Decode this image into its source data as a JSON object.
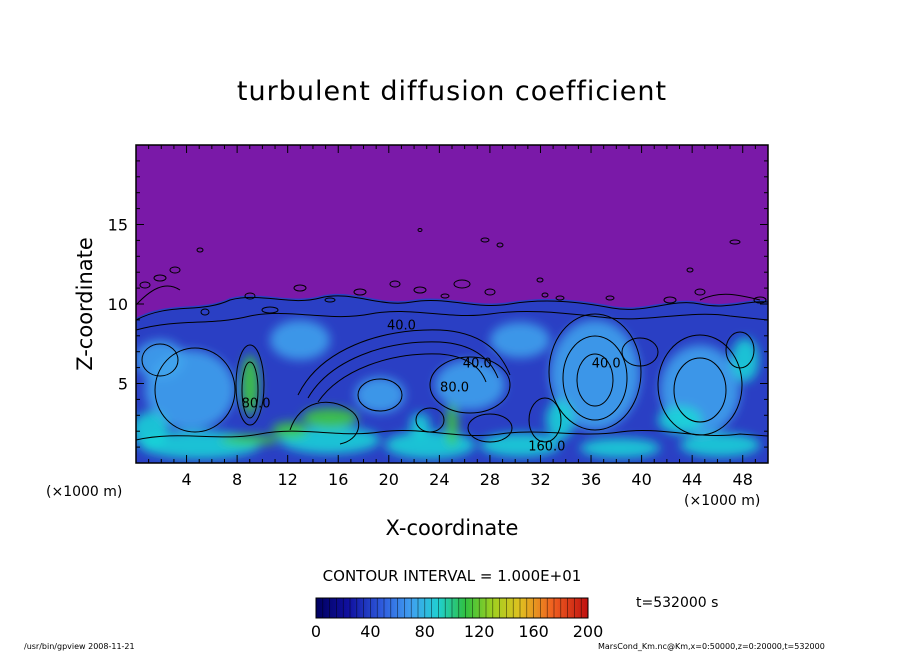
{
  "chart_data": {
    "type": "heatmap",
    "title": "turbulent diffusion coefficient",
    "xlabel": "X-coordinate",
    "ylabel": "Z-coordinate",
    "x_unit": "(×1000 m)",
    "y_unit": "(×1000 m)",
    "xlim": [
      0,
      50
    ],
    "ylim": [
      0,
      20
    ],
    "x_ticks": [
      4,
      8,
      12,
      16,
      20,
      24,
      28,
      32,
      36,
      40,
      44,
      48
    ],
    "y_ticks": [
      5,
      10,
      15
    ],
    "contour_interval": "CONTOUR INTERVAL = 1.000E+01",
    "colorbar": {
      "min": 0,
      "max": 200,
      "tick_values": [
        0,
        40,
        80,
        120,
        160,
        200
      ]
    },
    "contour_labels": [
      {
        "text": "40.0",
        "x": 37.2,
        "z": 6.0
      },
      {
        "text": "40.0",
        "x": 27.0,
        "z": 6.0
      },
      {
        "text": "80.0",
        "x": 25.2,
        "z": 4.5
      },
      {
        "text": "40.0",
        "x": 21.0,
        "z": 8.4
      },
      {
        "text": "160.0",
        "x": 32.5,
        "z": 0.8
      },
      {
        "text": "80.0",
        "x": 9.5,
        "z": 3.5
      }
    ],
    "background_value": 0
  },
  "time_label": "t=532000 s",
  "footer": {
    "left": "/usr/bin/gpview   2008-11-21",
    "right": "MarsCond_Km.nc@Km,x=0:50000,z=0:20000,t=532000"
  },
  "colors": {
    "background_field": "#7a19a8",
    "low": "#2a3fc4",
    "mid": "#3fa6ee",
    "cyan": "#18d8d8",
    "green": "#3ed23a"
  }
}
